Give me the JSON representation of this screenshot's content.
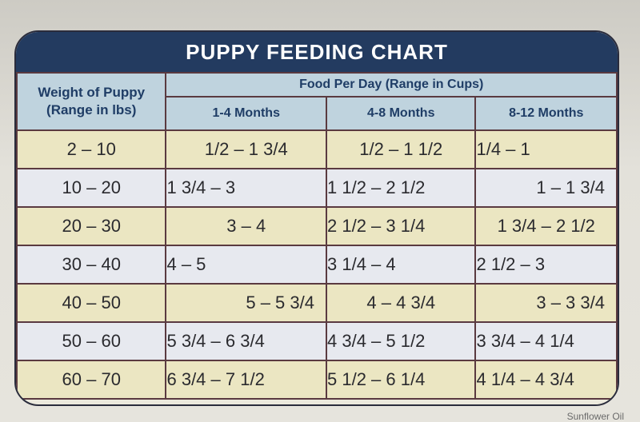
{
  "chart": {
    "title": "PUPPY FEEDING CHART",
    "weight_header_line1": "Weight of Puppy",
    "weight_header_line2": "(Range in lbs)",
    "food_header": "Food Per Day (Range in Cups)",
    "columns": [
      "1-4 Months",
      "4-8 Months",
      "8-12 Months"
    ],
    "rows": [
      {
        "weight": "2 – 10",
        "c1": "1/2 – 1 3/4",
        "c2": "1/2 – 1 1/2",
        "c3": "1/4 – 1"
      },
      {
        "weight": "10 – 20",
        "c1": "1 3/4 – 3",
        "c2": "1 1/2 – 2 1/2",
        "c3": "1 – 1 3/4"
      },
      {
        "weight": "20 – 30",
        "c1": "3 – 4",
        "c2": "2 1/2 – 3 1/4",
        "c3": "1 3/4 – 2 1/2"
      },
      {
        "weight": "30 – 40",
        "c1": "4 – 5",
        "c2": "3 1/4 – 4",
        "c3": "2 1/2 – 3"
      },
      {
        "weight": "40 – 50",
        "c1": "5 – 5 3/4",
        "c2": "4 – 4 3/4",
        "c3": "3 – 3 3/4"
      },
      {
        "weight": "50 – 60",
        "c1": "5 3/4 – 6 3/4",
        "c2": "4 3/4 – 5 1/2",
        "c3": "3 3/4 – 4 1/4"
      },
      {
        "weight": "60 – 70",
        "c1": "6 3/4 – 7 1/2",
        "c2": "5 1/2 – 6 1/4",
        "c3": "4 1/4 – 4 3/4"
      }
    ]
  },
  "footer_fragment": "Sunflower Oil",
  "colors": {
    "title_bar": "#233b60",
    "header": "#bfd3de",
    "row_tan": "#ebe6c2",
    "row_gray": "#e7e9ef"
  }
}
